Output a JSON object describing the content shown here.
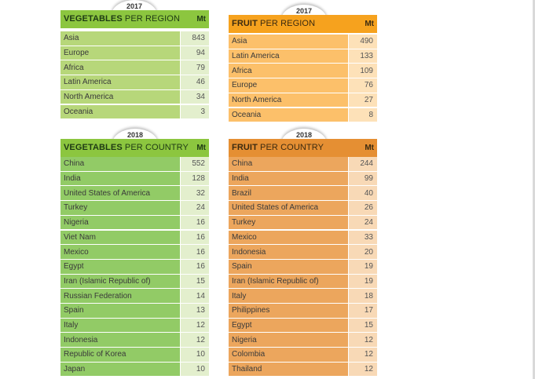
{
  "veg_region": {
    "year": "2017",
    "title_bold": "VEGETABLES",
    "title_rest": " PER REGION",
    "unit": "Mt",
    "rows": [
      {
        "name": "Asia",
        "value": "843"
      },
      {
        "name": "Europe",
        "value": "94"
      },
      {
        "name": "Africa",
        "value": "79"
      },
      {
        "name": "Latin America",
        "value": "46"
      },
      {
        "name": "North America",
        "value": "34"
      },
      {
        "name": "Oceania",
        "value": "3"
      }
    ]
  },
  "fruit_region": {
    "year": "2017",
    "title_bold": "FRUIT",
    "title_rest": " PER REGION",
    "unit": "Mt",
    "rows": [
      {
        "name": "Asia",
        "value": "490"
      },
      {
        "name": "Latin America",
        "value": "133"
      },
      {
        "name": "Africa",
        "value": "109"
      },
      {
        "name": "Europe",
        "value": "76"
      },
      {
        "name": "North America",
        "value": "27"
      },
      {
        "name": "Oceania",
        "value": "8"
      }
    ]
  },
  "veg_country": {
    "year": "2018",
    "title_bold": "VEGETABLES",
    "title_rest": " PER COUNTRY",
    "unit": "Mt",
    "rows": [
      {
        "name": "China",
        "value": "552"
      },
      {
        "name": "India",
        "value": "128"
      },
      {
        "name": "United States of America",
        "value": "32"
      },
      {
        "name": "Turkey",
        "value": "24"
      },
      {
        "name": "Nigeria",
        "value": "16"
      },
      {
        "name": "Viet Nam",
        "value": "16"
      },
      {
        "name": "Mexico",
        "value": "16"
      },
      {
        "name": "Egypt",
        "value": "16"
      },
      {
        "name": "Iran (Islamic Republic of)",
        "value": "15"
      },
      {
        "name": "Russian Federation",
        "value": "14"
      },
      {
        "name": "Spain",
        "value": "13"
      },
      {
        "name": "Italy",
        "value": "12"
      },
      {
        "name": "Indonesia",
        "value": "12"
      },
      {
        "name": "Republic of Korea",
        "value": "10"
      },
      {
        "name": "Japan",
        "value": "10"
      }
    ]
  },
  "fruit_country": {
    "year": "2018",
    "title_bold": "FRUIT",
    "title_rest": " PER COUNTRY",
    "unit": "Mt",
    "rows": [
      {
        "name": "China",
        "value": "244"
      },
      {
        "name": "India",
        "value": "99"
      },
      {
        "name": "Brazil",
        "value": "40"
      },
      {
        "name": "United States of America",
        "value": "26"
      },
      {
        "name": "Turkey",
        "value": "24"
      },
      {
        "name": "Mexico",
        "value": "33"
      },
      {
        "name": "Indonesia",
        "value": "20"
      },
      {
        "name": "Spain",
        "value": "19"
      },
      {
        "name": "Iran (Islamic Republic of)",
        "value": "19"
      },
      {
        "name": "Italy",
        "value": "18"
      },
      {
        "name": "Philippines",
        "value": "17"
      },
      {
        "name": "Egypt",
        "value": "15"
      },
      {
        "name": "Nigeria",
        "value": "12"
      },
      {
        "name": "Colombia",
        "value": "12"
      },
      {
        "name": "Thailand",
        "value": "12"
      }
    ]
  }
}
